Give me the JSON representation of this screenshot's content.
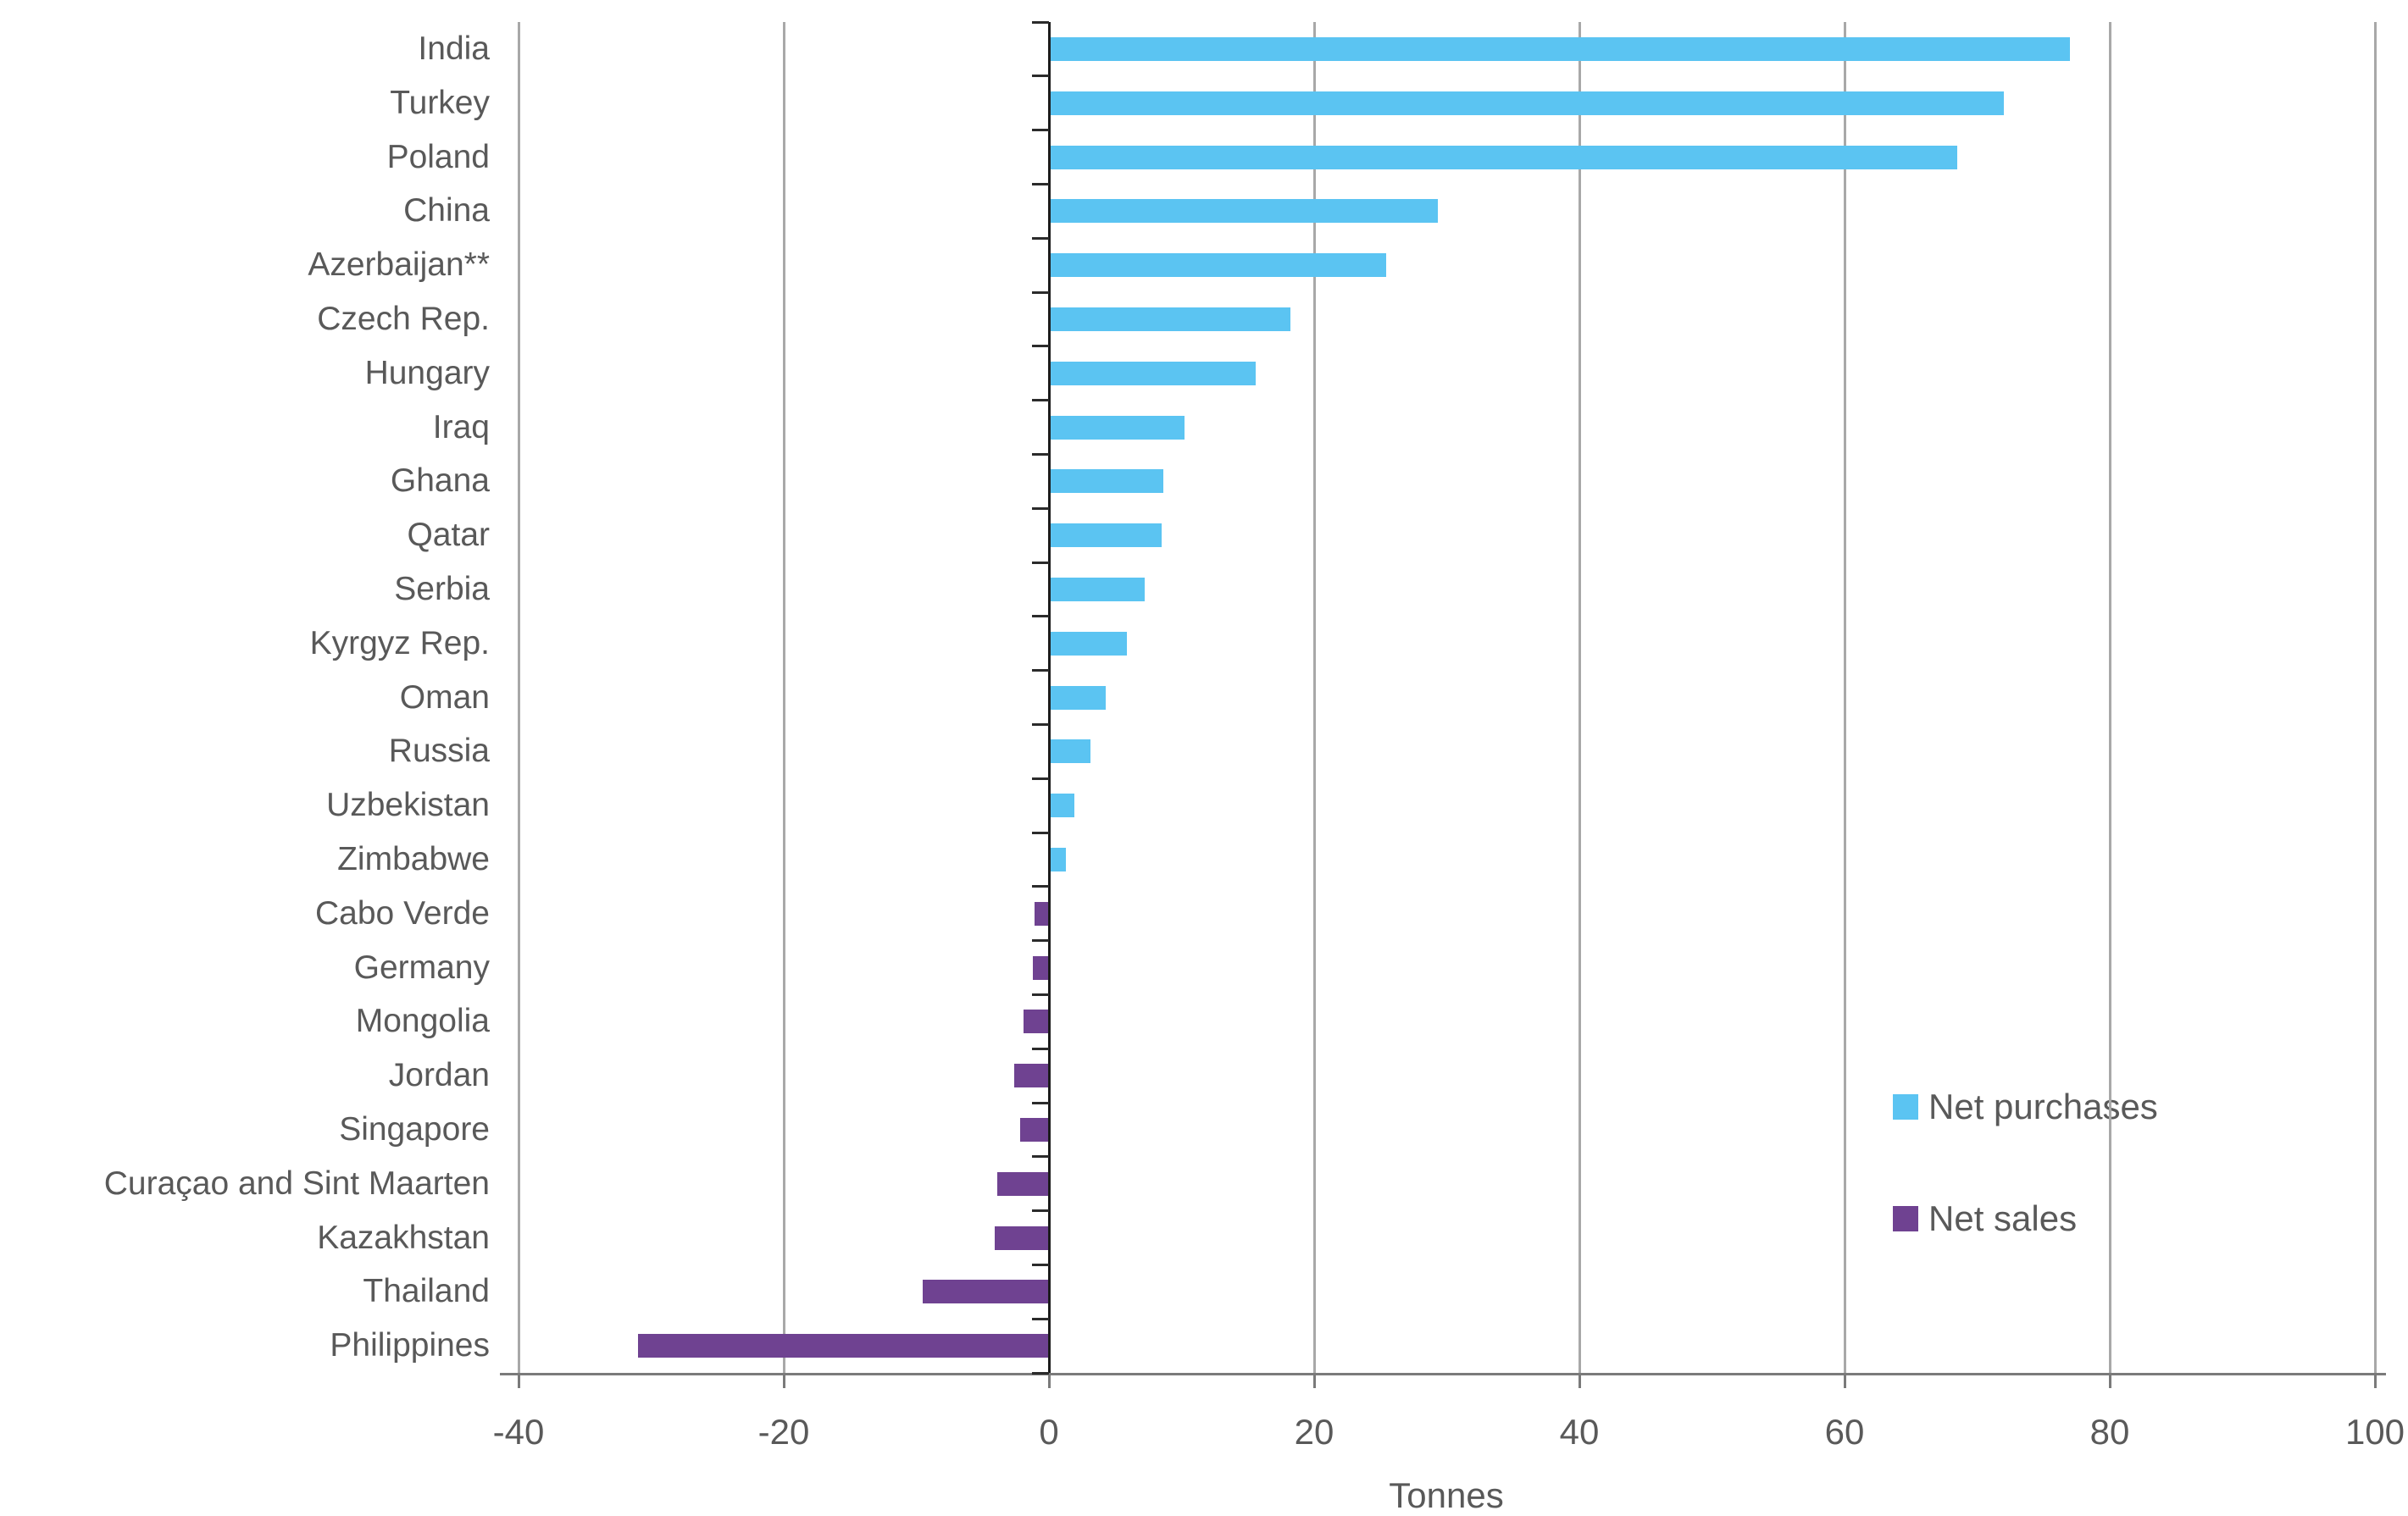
{
  "chart_data": {
    "type": "bar",
    "orientation": "horizontal",
    "xlabel": "Tonnes",
    "xlim": [
      -40,
      100
    ],
    "x_ticks": [
      -40,
      -20,
      0,
      20,
      40,
      60,
      80,
      100
    ],
    "grid": "vertical-gridlines-on",
    "legend_position": "lower-right",
    "categories": [
      "India",
      "Turkey",
      "Poland",
      "China",
      "Azerbaijan**",
      "Czech Rep.",
      "Hungary",
      "Iraq",
      "Ghana",
      "Qatar",
      "Serbia",
      "Kyrgyz Rep.",
      "Oman",
      "Russia",
      "Uzbekistan",
      "Zimbabwe",
      "Cabo Verde",
      "Germany",
      "Mongolia",
      "Jordan",
      "Singapore",
      "Curaçao and Sint Maarten",
      "Kazakhstan",
      "Thailand",
      "Philippines"
    ],
    "values": [
      77,
      72,
      68.5,
      29.3,
      25.4,
      18.2,
      15.6,
      10.2,
      8.6,
      8.5,
      7.2,
      5.9,
      4.3,
      3.1,
      1.9,
      1.3,
      -1.1,
      -1.2,
      -1.9,
      -2.6,
      -2.2,
      -3.9,
      -4.1,
      -9.5,
      -31
    ],
    "series": [
      {
        "name": "Net purchases",
        "color": "#5BC4F2",
        "applies_to": "values >= 0"
      },
      {
        "name": "Net sales",
        "color": "#6F4291",
        "applies_to": "values < 0"
      }
    ]
  }
}
